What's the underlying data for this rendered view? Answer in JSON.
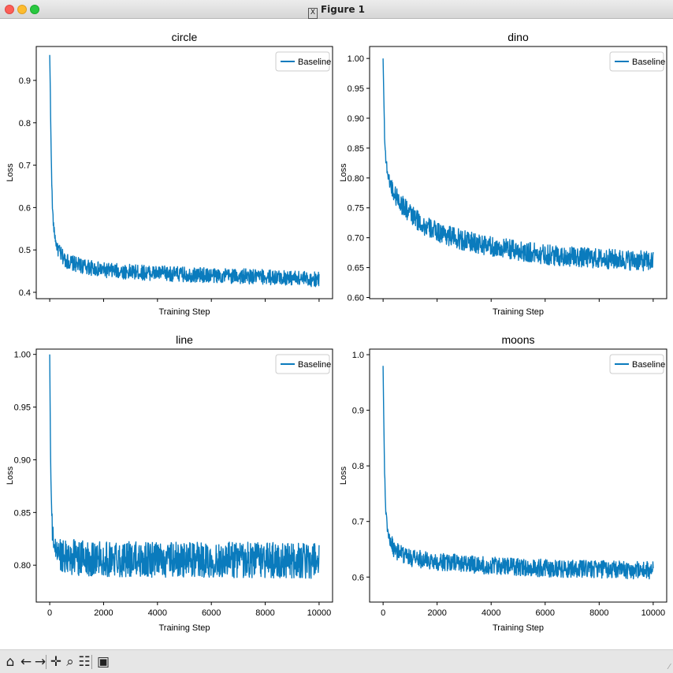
{
  "window": {
    "title": "Figure 1"
  },
  "toolbar": {
    "buttons": [
      {
        "name": "home-icon",
        "glyph": "⌂"
      },
      {
        "name": "back-icon",
        "glyph": "←"
      },
      {
        "name": "forward-icon",
        "glyph": "→"
      },
      {
        "name": "pan-icon",
        "glyph": "✛"
      },
      {
        "name": "zoom-icon",
        "glyph": "⌕"
      },
      {
        "name": "configure-subplots-icon",
        "glyph": "☷"
      },
      {
        "name": "save-icon",
        "glyph": "▣"
      }
    ]
  },
  "colors": {
    "line": "#0a7bbd",
    "axes": "#000000",
    "bg": "#ffffff"
  },
  "chart_data": [
    {
      "type": "line",
      "title": "circle",
      "xlabel": "Training Step",
      "ylabel": "Loss",
      "legend": "Baseline",
      "legend_position": "top-right",
      "xlim": [
        -500,
        10500
      ],
      "ylim": [
        0.385,
        0.98
      ],
      "xticks": [
        0,
        2000,
        4000,
        6000,
        8000,
        10000
      ],
      "show_xticklabels": false,
      "yticks": [
        0.4,
        0.5,
        0.6,
        0.7,
        0.8,
        0.9
      ],
      "series": [
        {
          "name": "Baseline",
          "x": [
            0,
            20,
            50,
            100,
            150,
            250,
            400,
            600,
            1000,
            1500,
            2000,
            3000,
            4000,
            5000,
            6000,
            7000,
            8000,
            9000,
            10000
          ],
          "y": [
            0.96,
            0.88,
            0.74,
            0.6,
            0.55,
            0.51,
            0.49,
            0.475,
            0.465,
            0.458,
            0.452,
            0.448,
            0.445,
            0.442,
            0.44,
            0.438,
            0.436,
            0.434,
            0.43
          ]
        }
      ],
      "noise": 0.018
    },
    {
      "type": "line",
      "title": "dino",
      "xlabel": "Training Step",
      "ylabel": "Loss",
      "legend": "Baseline",
      "legend_position": "top-right",
      "xlim": [
        -500,
        10500
      ],
      "ylim": [
        0.598,
        1.02
      ],
      "xticks": [
        0,
        2000,
        4000,
        6000,
        8000,
        10000
      ],
      "show_xticklabels": false,
      "yticks": [
        0.6,
        0.65,
        0.7,
        0.75,
        0.8,
        0.85,
        0.9,
        0.95,
        1.0
      ],
      "series": [
        {
          "name": "Baseline",
          "x": [
            0,
            20,
            50,
            100,
            200,
            400,
            700,
            1000,
            1500,
            2000,
            3000,
            4000,
            5000,
            6000,
            7000,
            8000,
            9000,
            10000
          ],
          "y": [
            1.0,
            0.95,
            0.88,
            0.83,
            0.8,
            0.775,
            0.755,
            0.74,
            0.72,
            0.71,
            0.695,
            0.685,
            0.678,
            0.672,
            0.668,
            0.665,
            0.663,
            0.66
          ]
        }
      ],
      "noise": 0.017
    },
    {
      "type": "line",
      "title": "line",
      "xlabel": "Training Step",
      "ylabel": "Loss",
      "legend": "Baseline",
      "legend_position": "top-right",
      "xlim": [
        -500,
        10500
      ],
      "ylim": [
        0.765,
        1.005
      ],
      "xticks": [
        0,
        2000,
        4000,
        6000,
        8000,
        10000
      ],
      "show_xticklabels": true,
      "yticks": [
        0.8,
        0.85,
        0.9,
        0.95,
        1.0
      ],
      "series": [
        {
          "name": "Baseline",
          "x": [
            0,
            20,
            50,
            100,
            200,
            400,
            1000,
            2000,
            4000,
            6000,
            8000,
            10000
          ],
          "y": [
            1.0,
            0.93,
            0.87,
            0.83,
            0.815,
            0.81,
            0.807,
            0.806,
            0.805,
            0.805,
            0.805,
            0.804
          ]
        }
      ],
      "noise": 0.017
    },
    {
      "type": "line",
      "title": "moons",
      "xlabel": "Training Step",
      "ylabel": "Loss",
      "legend": "Baseline",
      "legend_position": "top-right",
      "xlim": [
        -500,
        10500
      ],
      "ylim": [
        0.555,
        1.01
      ],
      "xticks": [
        0,
        2000,
        4000,
        6000,
        8000,
        10000
      ],
      "show_xticklabels": true,
      "yticks": [
        0.6,
        0.7,
        0.8,
        0.9,
        1.0
      ],
      "series": [
        {
          "name": "Baseline",
          "x": [
            0,
            20,
            50,
            100,
            150,
            250,
            400,
            700,
            1000,
            2000,
            3000,
            4000,
            5000,
            6000,
            7000,
            8000,
            9000,
            10000
          ],
          "y": [
            0.98,
            0.9,
            0.8,
            0.72,
            0.69,
            0.665,
            0.65,
            0.64,
            0.635,
            0.628,
            0.624,
            0.62,
            0.618,
            0.616,
            0.615,
            0.614,
            0.613,
            0.612
          ]
        }
      ],
      "noise": 0.016
    }
  ]
}
